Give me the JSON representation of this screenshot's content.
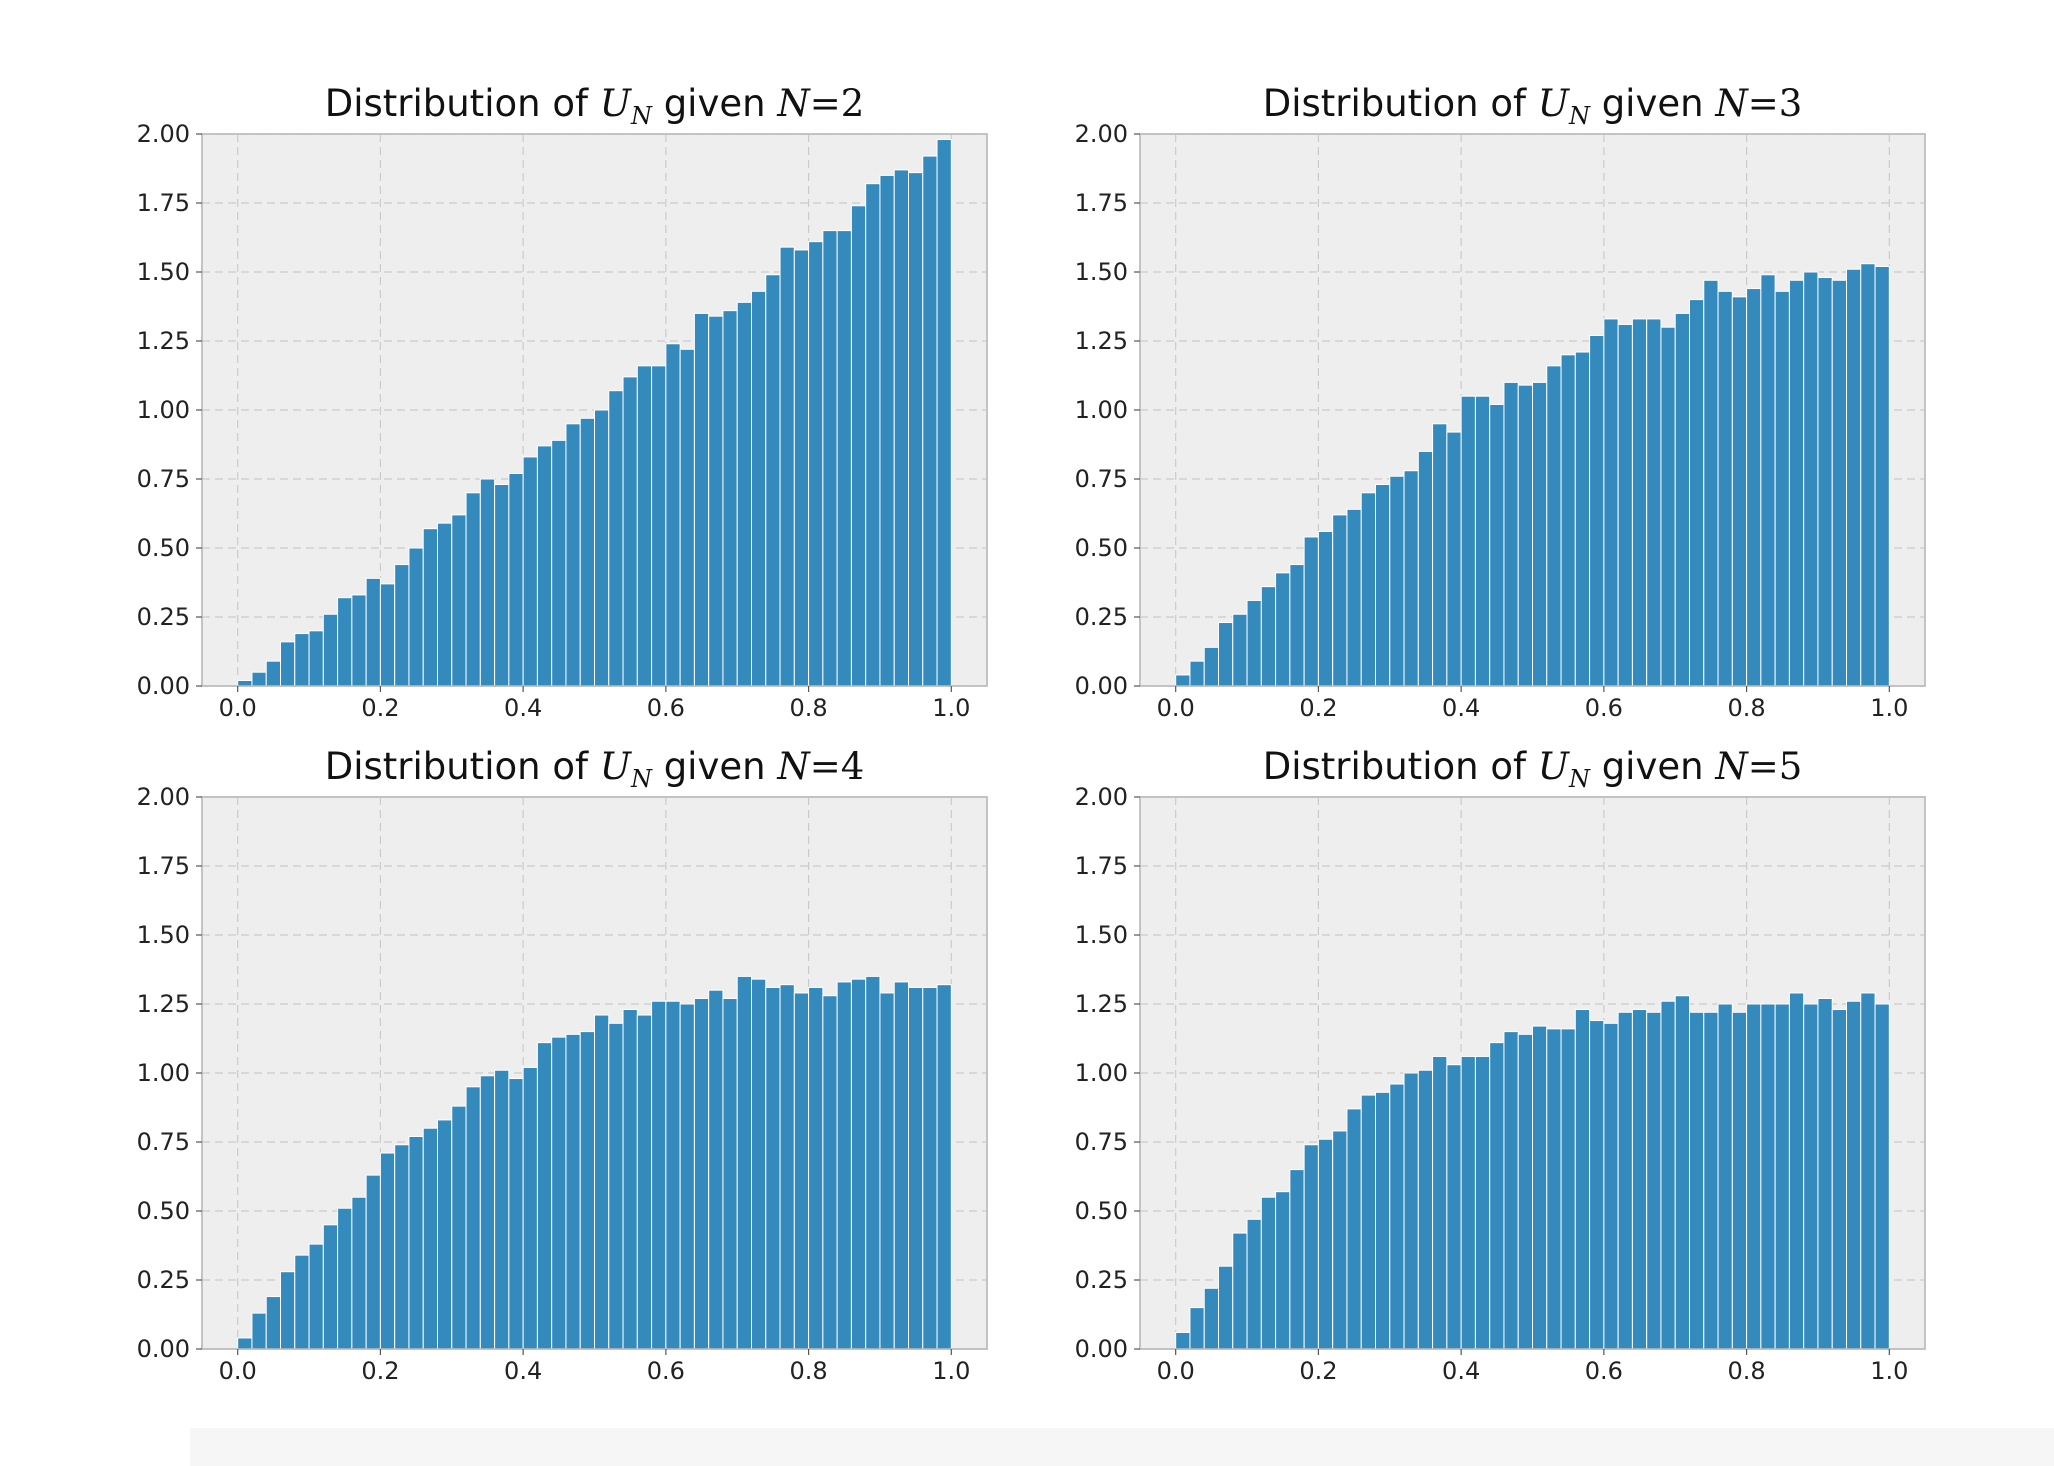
{
  "figure": {
    "title_prefix": "Distribution of",
    "title_given": "given",
    "subscript": "N",
    "variable": "U",
    "condition_var": "N",
    "equals": "="
  },
  "colors": {
    "bar": "#348abd",
    "axes_background": "#eeeeee",
    "grid": "#cbcbcb"
  },
  "chart_data": [
    {
      "type": "bar",
      "title": "Distribution of U_N given N=2",
      "n_value": "2",
      "bin_edges": [
        0.0,
        1.0
      ],
      "bin_count": 50,
      "xlim": [
        -0.05,
        1.05
      ],
      "ylim": [
        0,
        2
      ],
      "xticks": [
        "0.0",
        "0.2",
        "0.4",
        "0.6",
        "0.8",
        "1.0"
      ],
      "yticks": [
        "0.00",
        "0.25",
        "0.50",
        "0.75",
        "1.00",
        "1.25",
        "1.50",
        "1.75",
        "2.00"
      ],
      "grid": true,
      "values": [
        0.02,
        0.05,
        0.09,
        0.16,
        0.19,
        0.2,
        0.26,
        0.32,
        0.33,
        0.39,
        0.37,
        0.44,
        0.5,
        0.57,
        0.59,
        0.62,
        0.7,
        0.75,
        0.73,
        0.77,
        0.83,
        0.87,
        0.89,
        0.95,
        0.97,
        1.0,
        1.07,
        1.12,
        1.16,
        1.16,
        1.24,
        1.22,
        1.35,
        1.34,
        1.36,
        1.39,
        1.43,
        1.49,
        1.59,
        1.58,
        1.61,
        1.65,
        1.65,
        1.74,
        1.82,
        1.85,
        1.87,
        1.86,
        1.92,
        1.98
      ]
    },
    {
      "type": "bar",
      "title": "Distribution of U_N given N=3",
      "n_value": "3",
      "bin_edges": [
        0.0,
        1.0
      ],
      "bin_count": 50,
      "xlim": [
        -0.05,
        1.05
      ],
      "ylim": [
        0,
        2
      ],
      "xticks": [
        "0.0",
        "0.2",
        "0.4",
        "0.6",
        "0.8",
        "1.0"
      ],
      "yticks": [
        "0.00",
        "0.25",
        "0.50",
        "0.75",
        "1.00",
        "1.25",
        "1.50",
        "1.75",
        "2.00"
      ],
      "grid": true,
      "values": [
        0.04,
        0.09,
        0.14,
        0.23,
        0.26,
        0.31,
        0.36,
        0.41,
        0.44,
        0.54,
        0.56,
        0.62,
        0.64,
        0.7,
        0.73,
        0.76,
        0.78,
        0.85,
        0.95,
        0.92,
        1.05,
        1.05,
        1.02,
        1.1,
        1.09,
        1.1,
        1.16,
        1.2,
        1.21,
        1.27,
        1.33,
        1.31,
        1.33,
        1.33,
        1.3,
        1.35,
        1.4,
        1.47,
        1.43,
        1.41,
        1.44,
        1.49,
        1.43,
        1.47,
        1.5,
        1.48,
        1.47,
        1.51,
        1.53,
        1.52
      ]
    },
    {
      "type": "bar",
      "title": "Distribution of U_N given N=4",
      "n_value": "4",
      "bin_edges": [
        0.0,
        1.0
      ],
      "bin_count": 50,
      "xlim": [
        -0.05,
        1.05
      ],
      "ylim": [
        0,
        2
      ],
      "xticks": [
        "0.0",
        "0.2",
        "0.4",
        "0.6",
        "0.8",
        "1.0"
      ],
      "yticks": [
        "0.00",
        "0.25",
        "0.50",
        "0.75",
        "1.00",
        "1.25",
        "1.50",
        "1.75",
        "2.00"
      ],
      "grid": true,
      "values": [
        0.04,
        0.13,
        0.19,
        0.28,
        0.34,
        0.38,
        0.45,
        0.51,
        0.55,
        0.63,
        0.71,
        0.74,
        0.77,
        0.8,
        0.83,
        0.88,
        0.95,
        0.99,
        1.01,
        0.98,
        1.02,
        1.11,
        1.13,
        1.14,
        1.15,
        1.21,
        1.18,
        1.23,
        1.21,
        1.26,
        1.26,
        1.25,
        1.27,
        1.3,
        1.27,
        1.35,
        1.34,
        1.31,
        1.32,
        1.29,
        1.31,
        1.28,
        1.33,
        1.34,
        1.35,
        1.29,
        1.33,
        1.31,
        1.31,
        1.32
      ]
    },
    {
      "type": "bar",
      "title": "Distribution of U_N given N=5",
      "n_value": "5",
      "bin_edges": [
        0.0,
        1.0
      ],
      "bin_count": 50,
      "xlim": [
        -0.05,
        1.05
      ],
      "ylim": [
        0,
        2
      ],
      "xticks": [
        "0.0",
        "0.2",
        "0.4",
        "0.6",
        "0.8",
        "1.0"
      ],
      "yticks": [
        "0.00",
        "0.25",
        "0.50",
        "0.75",
        "1.00",
        "1.25",
        "1.50",
        "1.75",
        "2.00"
      ],
      "grid": true,
      "values": [
        0.06,
        0.15,
        0.22,
        0.3,
        0.42,
        0.47,
        0.55,
        0.57,
        0.65,
        0.74,
        0.76,
        0.79,
        0.87,
        0.92,
        0.93,
        0.96,
        1.0,
        1.01,
        1.06,
        1.03,
        1.06,
        1.06,
        1.11,
        1.15,
        1.14,
        1.17,
        1.16,
        1.16,
        1.23,
        1.19,
        1.18,
        1.22,
        1.23,
        1.22,
        1.26,
        1.28,
        1.22,
        1.22,
        1.25,
        1.22,
        1.25,
        1.25,
        1.25,
        1.29,
        1.25,
        1.27,
        1.23,
        1.26,
        1.29,
        1.25
      ]
    }
  ]
}
